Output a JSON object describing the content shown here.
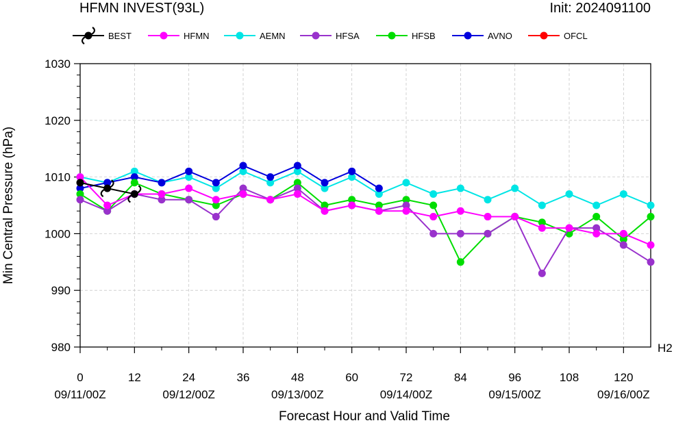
{
  "chart_data": {
    "type": "line",
    "title": "HFMN INVEST(93L)",
    "init_label": "Init: 2024091100",
    "xlabel": "Forecast Hour and Valid Time",
    "ylabel": "Min Central Pressure (hPa)",
    "corner_label": "H2",
    "xlim": [
      0,
      126
    ],
    "ylim": [
      980,
      1030
    ],
    "grid": true,
    "legend_position": "top",
    "x_ticks": [
      {
        "x": 0,
        "label": "0",
        "date": "09/11/00Z"
      },
      {
        "x": 12,
        "label": "12",
        "date": ""
      },
      {
        "x": 24,
        "label": "24",
        "date": "09/12/00Z"
      },
      {
        "x": 36,
        "label": "36",
        "date": ""
      },
      {
        "x": 48,
        "label": "48",
        "date": "09/13/00Z"
      },
      {
        "x": 60,
        "label": "60",
        "date": ""
      },
      {
        "x": 72,
        "label": "72",
        "date": "09/14/00Z"
      },
      {
        "x": 84,
        "label": "84",
        "date": ""
      },
      {
        "x": 96,
        "label": "96",
        "date": "09/15/00Z"
      },
      {
        "x": 108,
        "label": "108",
        "date": ""
      },
      {
        "x": 120,
        "label": "120",
        "date": "09/16/00Z"
      }
    ],
    "y_ticks": [
      980,
      990,
      1000,
      1010,
      1020,
      1030
    ],
    "series": [
      {
        "name": "BEST",
        "color": "#000000",
        "marker": "hurricane-symbol",
        "x": [
          0,
          6,
          12
        ],
        "y": [
          1009,
          1008,
          1007
        ]
      },
      {
        "name": "HFMN",
        "color": "#ff00ff",
        "x": [
          0,
          6,
          12,
          18,
          24,
          30,
          36,
          42,
          48,
          54,
          60,
          66,
          72,
          78,
          84,
          90,
          96,
          102,
          108,
          114,
          120,
          126
        ],
        "y": [
          1010,
          1005,
          1007,
          1007,
          1008,
          1006,
          1007,
          1006,
          1007,
          1004,
          1005,
          1004,
          1004,
          1003,
          1004,
          1003,
          1003,
          1001,
          1001,
          1000,
          1000,
          998
        ]
      },
      {
        "name": "AEMN",
        "color": "#00e5e5",
        "x": [
          0,
          6,
          12,
          18,
          24,
          30,
          36,
          42,
          48,
          54,
          60,
          66,
          72,
          78,
          84,
          90,
          96,
          102,
          108,
          114,
          120,
          126
        ],
        "y": [
          1010,
          1009,
          1011,
          1009,
          1010,
          1008,
          1011,
          1009,
          1011,
          1008,
          1010,
          1007,
          1009,
          1007,
          1008,
          1006,
          1008,
          1005,
          1007,
          1005,
          1007,
          1005
        ]
      },
      {
        "name": "HFSA",
        "color": "#9932cc",
        "x": [
          0,
          6,
          12,
          18,
          24,
          30,
          36,
          42,
          48,
          54,
          60,
          66,
          72,
          78,
          84,
          90,
          96,
          102,
          108,
          114,
          120,
          126
        ],
        "y": [
          1006,
          1004,
          1007,
          1006,
          1006,
          1003,
          1008,
          1006,
          1008,
          1004,
          1005,
          1004,
          1005,
          1000,
          1000,
          1000,
          1003,
          993,
          1001,
          1001,
          998,
          995
        ]
      },
      {
        "name": "HFSB",
        "color": "#00dd00",
        "x": [
          0,
          6,
          12,
          18,
          24,
          30,
          36,
          42,
          48,
          54,
          60,
          66,
          72,
          78,
          84,
          90,
          96,
          102,
          108,
          114,
          120,
          126
        ],
        "y": [
          1007,
          1004,
          1009,
          1007,
          1006,
          1005,
          1007,
          1006,
          1009,
          1005,
          1006,
          1005,
          1006,
          1005,
          995,
          1000,
          1003,
          1002,
          1000,
          1003,
          999,
          1003
        ]
      },
      {
        "name": "AVNO",
        "color": "#0000dd",
        "x": [
          0,
          6,
          12,
          18,
          24,
          30,
          36,
          42,
          48,
          54,
          60,
          66
        ],
        "y": [
          1008,
          1009,
          1010,
          1009,
          1011,
          1009,
          1012,
          1010,
          1012,
          1009,
          1011,
          1008
        ]
      },
      {
        "name": "OFCL",
        "color": "#ff0000",
        "x": [],
        "y": []
      }
    ]
  }
}
